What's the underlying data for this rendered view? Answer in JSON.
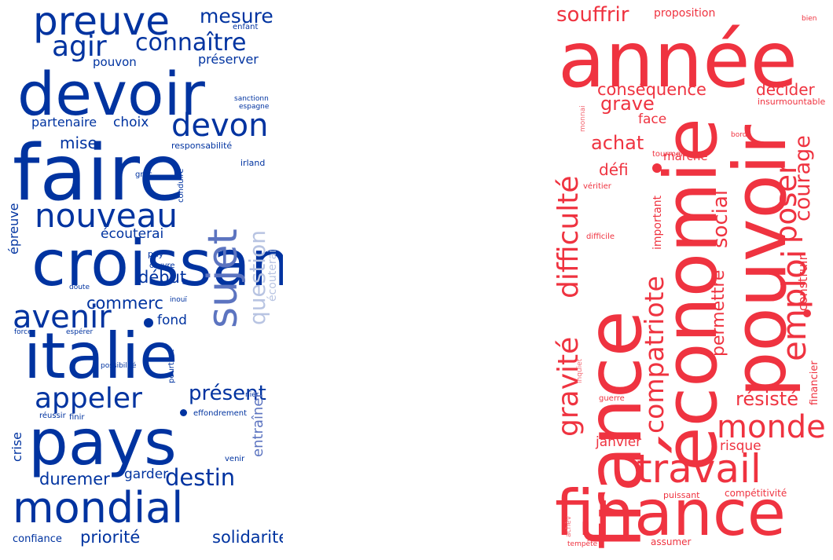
{
  "colors": {
    "blue": "#0033A0",
    "blue_light": "#B8C4E2",
    "blue_mid": "#5C74C0",
    "red": "#EF3340",
    "red_light": "#F7A1A8",
    "red_mid": "#F26A74"
  },
  "left_cloud": {
    "words": [
      "preuve",
      "mesure",
      "enfant",
      "agir",
      "connaître",
      "pouvon",
      "préserver",
      "devoir",
      "sanctionn",
      "espagne",
      "partenaire",
      "choix",
      "devon",
      "mise",
      "responsabilité",
      "faire",
      "grèc",
      "irland",
      "conduire",
      "nouveau",
      "épreuve",
      "sujet",
      "question",
      "écouterai",
      "croissance",
      "pay",
      "œuvre",
      "début",
      "doute",
      "inouï",
      "commerc",
      "avenir",
      "fond",
      "force",
      "espérer",
      "italie",
      "crise",
      "possibilité",
      "pourtant",
      "appeler",
      "présent",
      "nier",
      "réussir",
      "finir",
      "effondrement",
      "entraîner",
      "pays",
      "venir",
      "duremer",
      "garder",
      "destin",
      "mondial",
      "confiance",
      "priorité",
      "solidarité",
      "tenir"
    ]
  },
  "right_cloud": {
    "words": [
      "souffrir",
      "proposition",
      "bien",
      "année",
      "conséquence",
      "décider",
      "insurmountable",
      "monnai",
      "grave",
      "face",
      "difficulté",
      "france",
      "économie",
      "pouvoir",
      "courage",
      "achat",
      "bord",
      "tourmente",
      "marché",
      "défi",
      "véritier",
      "social",
      "poser",
      "important",
      "difficile",
      "emploi",
      "compatriote",
      "permettre",
      "construir",
      "gravité",
      "résisté",
      "inquiet",
      "monde",
      "financier",
      "guerre",
      "janvier",
      "risque",
      "travail",
      "puissant",
      "compétitivité",
      "achèv",
      "finance",
      "tempête",
      "assumer"
    ]
  }
}
